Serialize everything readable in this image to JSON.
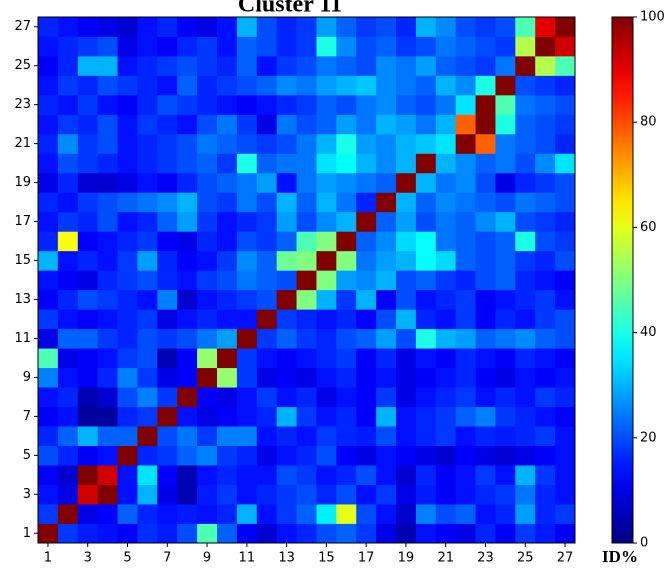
{
  "chart_data": {
    "type": "heatmap",
    "title": "Cluster 11",
    "colormap": "jet",
    "x": [
      1,
      2,
      3,
      4,
      5,
      6,
      7,
      8,
      9,
      10,
      11,
      12,
      13,
      14,
      15,
      16,
      17,
      18,
      19,
      20,
      21,
      22,
      23,
      24,
      25,
      26,
      27
    ],
    "y": [
      1,
      2,
      3,
      4,
      5,
      6,
      7,
      8,
      9,
      10,
      11,
      12,
      13,
      14,
      15,
      16,
      17,
      18,
      19,
      20,
      21,
      22,
      23,
      24,
      25,
      26,
      27
    ],
    "xticks": [
      1,
      3,
      5,
      7,
      9,
      11,
      13,
      15,
      17,
      19,
      21,
      23,
      25,
      27
    ],
    "yticks": [
      1,
      3,
      5,
      7,
      9,
      11,
      13,
      15,
      17,
      19,
      21,
      23,
      25,
      27
    ],
    "zlim": [
      0,
      100
    ],
    "zticks": [
      0,
      20,
      40,
      60,
      80,
      100
    ],
    "colorbar_label": "ID%",
    "z": [
      [
        100,
        18,
        15,
        14,
        12,
        17,
        15,
        20,
        45,
        22,
        12,
        8,
        14,
        16,
        20,
        22,
        18,
        10,
        5,
        14,
        12,
        10,
        16,
        12,
        18,
        15,
        12
      ],
      [
        18,
        100,
        10,
        12,
        22,
        16,
        14,
        15,
        14,
        16,
        30,
        14,
        18,
        22,
        36,
        60,
        20,
        14,
        8,
        25,
        20,
        22,
        14,
        16,
        28,
        16,
        18
      ],
      [
        14,
        10,
        92,
        100,
        14,
        30,
        10,
        5,
        15,
        18,
        14,
        16,
        18,
        20,
        16,
        20,
        14,
        18,
        10,
        15,
        12,
        14,
        16,
        18,
        24,
        16,
        14
      ],
      [
        12,
        8,
        100,
        92,
        14,
        35,
        12,
        5,
        14,
        16,
        14,
        14,
        20,
        18,
        14,
        16,
        20,
        14,
        8,
        16,
        12,
        14,
        18,
        14,
        30,
        18,
        14
      ],
      [
        20,
        16,
        12,
        14,
        100,
        16,
        18,
        22,
        25,
        18,
        16,
        10,
        14,
        16,
        20,
        12,
        10,
        14,
        12,
        10,
        8,
        12,
        10,
        8,
        10,
        12,
        14
      ],
      [
        16,
        22,
        30,
        22,
        22,
        100,
        20,
        24,
        18,
        25,
        25,
        14,
        16,
        14,
        18,
        16,
        15,
        20,
        14,
        16,
        18,
        14,
        16,
        15,
        16,
        18,
        14
      ],
      [
        12,
        14,
        3,
        3,
        16,
        18,
        100,
        14,
        10,
        12,
        14,
        16,
        30,
        18,
        14,
        16,
        12,
        30,
        14,
        16,
        18,
        22,
        25,
        18,
        16,
        14,
        12
      ],
      [
        14,
        16,
        5,
        8,
        20,
        25,
        18,
        100,
        12,
        10,
        14,
        18,
        14,
        16,
        10,
        14,
        12,
        18,
        10,
        14,
        16,
        18,
        14,
        16,
        14,
        18,
        16
      ],
      [
        25,
        14,
        12,
        16,
        25,
        18,
        10,
        12,
        100,
        52,
        18,
        10,
        12,
        10,
        14,
        16,
        12,
        14,
        10,
        12,
        14,
        16,
        12,
        10,
        14,
        12,
        14
      ],
      [
        45,
        10,
        12,
        14,
        18,
        20,
        5,
        12,
        52,
        100,
        18,
        14,
        12,
        14,
        16,
        18,
        12,
        16,
        10,
        14,
        12,
        16,
        14,
        12,
        16,
        14,
        12
      ],
      [
        10,
        22,
        22,
        18,
        16,
        20,
        18,
        20,
        24,
        28,
        100,
        18,
        22,
        18,
        16,
        20,
        22,
        28,
        20,
        40,
        30,
        28,
        22,
        24,
        26,
        22,
        20
      ],
      [
        18,
        14,
        12,
        14,
        16,
        18,
        10,
        14,
        16,
        14,
        14,
        100,
        18,
        16,
        14,
        16,
        12,
        20,
        30,
        16,
        14,
        18,
        12,
        16,
        14,
        18,
        20
      ],
      [
        12,
        16,
        20,
        18,
        16,
        14,
        25,
        8,
        14,
        16,
        18,
        20,
        100,
        50,
        30,
        18,
        30,
        12,
        20,
        14,
        16,
        18,
        12,
        14,
        16,
        18,
        14
      ],
      [
        14,
        12,
        10,
        16,
        18,
        20,
        16,
        14,
        18,
        20,
        24,
        22,
        20,
        100,
        50,
        28,
        26,
        30,
        20,
        22,
        18,
        16,
        20,
        22,
        16,
        14,
        12
      ],
      [
        30,
        14,
        16,
        14,
        18,
        28,
        16,
        12,
        14,
        18,
        26,
        22,
        48,
        50,
        100,
        50,
        24,
        28,
        30,
        38,
        34,
        22,
        20,
        22,
        18,
        16,
        20
      ],
      [
        16,
        62,
        12,
        14,
        16,
        18,
        12,
        10,
        16,
        14,
        20,
        18,
        22,
        45,
        50,
        100,
        22,
        26,
        34,
        38,
        24,
        22,
        20,
        22,
        40,
        20,
        18
      ],
      [
        14,
        18,
        16,
        20,
        14,
        16,
        22,
        28,
        18,
        14,
        16,
        18,
        28,
        20,
        26,
        30,
        100,
        22,
        28,
        20,
        24,
        22,
        26,
        30,
        20,
        18,
        16
      ],
      [
        16,
        14,
        18,
        20,
        22,
        24,
        26,
        30,
        20,
        18,
        24,
        20,
        30,
        22,
        30,
        24,
        16,
        100,
        30,
        22,
        26,
        24,
        22,
        20,
        24,
        22,
        20
      ],
      [
        10,
        16,
        8,
        8,
        10,
        14,
        12,
        16,
        20,
        22,
        24,
        28,
        14,
        24,
        28,
        26,
        24,
        22,
        100,
        30,
        24,
        26,
        20,
        10,
        16,
        18,
        20
      ],
      [
        14,
        20,
        18,
        16,
        14,
        16,
        18,
        20,
        22,
        18,
        40,
        22,
        24,
        24,
        35,
        38,
        30,
        26,
        30,
        100,
        30,
        26,
        22,
        24,
        20,
        26,
        35
      ],
      [
        16,
        26,
        18,
        20,
        14,
        16,
        18,
        20,
        24,
        22,
        20,
        18,
        20,
        24,
        30,
        40,
        28,
        26,
        30,
        32,
        35,
        100,
        78,
        24,
        22,
        20,
        16
      ],
      [
        14,
        18,
        16,
        20,
        14,
        18,
        16,
        14,
        20,
        24,
        18,
        10,
        24,
        20,
        22,
        28,
        24,
        30,
        28,
        24,
        30,
        78,
        100,
        40,
        22,
        20,
        18
      ],
      [
        16,
        14,
        18,
        14,
        12,
        16,
        20,
        18,
        16,
        14,
        12,
        14,
        16,
        18,
        22,
        20,
        24,
        26,
        22,
        20,
        24,
        35,
        100,
        45,
        24,
        22,
        20
      ],
      [
        14,
        18,
        16,
        20,
        18,
        16,
        14,
        22,
        16,
        18,
        20,
        22,
        26,
        24,
        28,
        30,
        32,
        26,
        24,
        22,
        30,
        26,
        40,
        100,
        20,
        18,
        16
      ],
      [
        12,
        16,
        30,
        30,
        14,
        16,
        18,
        20,
        18,
        16,
        22,
        14,
        18,
        20,
        24,
        22,
        20,
        26,
        24,
        28,
        22,
        20,
        18,
        24,
        100,
        55,
        45
      ],
      [
        14,
        16,
        18,
        20,
        10,
        14,
        12,
        16,
        18,
        14,
        22,
        20,
        16,
        18,
        40,
        26,
        20,
        22,
        18,
        20,
        24,
        22,
        20,
        18,
        55,
        100,
        92
      ],
      [
        16,
        14,
        12,
        10,
        8,
        14,
        16,
        12,
        10,
        14,
        30,
        20,
        16,
        18,
        28,
        22,
        18,
        20,
        16,
        30,
        26,
        20,
        18,
        20,
        45,
        90,
        100
      ]
    ]
  }
}
